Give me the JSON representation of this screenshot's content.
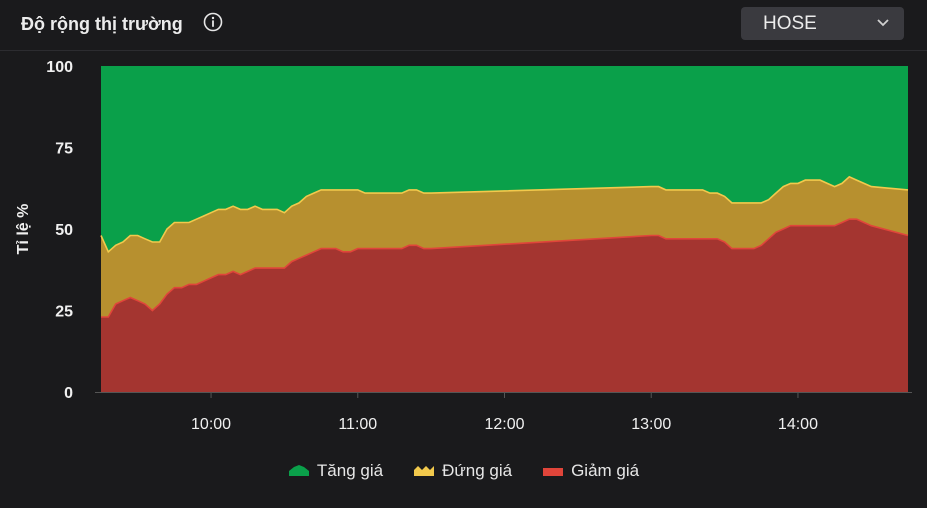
{
  "header": {
    "title": "Độ rộng thị trường",
    "info_icon": "info-circle-icon",
    "exchange_select": {
      "value": "HOSE",
      "icon": "chevron-down-icon"
    }
  },
  "colors": {
    "up": "#0aa04a",
    "flat": "#b7902f",
    "down": "#a43530",
    "flat_line": "#f2c94c",
    "down_line": "#e0453a",
    "axis_text": "#f0f0f0",
    "grid_line": "#555555"
  },
  "legend": [
    {
      "key": "up",
      "label": "Tăng giá"
    },
    {
      "key": "flat",
      "label": "Đứng giá"
    },
    {
      "key": "down",
      "label": "Giảm giá"
    }
  ],
  "chart_data": {
    "type": "area",
    "stacked": true,
    "ylabel": "Tỉ lệ %",
    "ylim": [
      0,
      100
    ],
    "yticks": [
      "0",
      "25",
      "50",
      "75",
      "100"
    ],
    "xlim": [
      "09:15",
      "14:45"
    ],
    "xticks": [
      "10:00",
      "11:00",
      "12:00",
      "13:00",
      "14:00"
    ],
    "x": [
      "09:15",
      "09:18",
      "09:21",
      "09:24",
      "09:27",
      "09:30",
      "09:33",
      "09:36",
      "09:39",
      "09:42",
      "09:45",
      "09:48",
      "09:51",
      "09:54",
      "09:57",
      "10:00",
      "10:03",
      "10:06",
      "10:09",
      "10:12",
      "10:15",
      "10:18",
      "10:21",
      "10:24",
      "10:27",
      "10:30",
      "10:33",
      "10:36",
      "10:39",
      "10:42",
      "10:45",
      "10:48",
      "10:51",
      "10:54",
      "10:57",
      "11:00",
      "11:03",
      "11:06",
      "11:09",
      "11:12",
      "11:15",
      "11:18",
      "11:21",
      "11:24",
      "11:27",
      "11:30",
      "13:00",
      "13:03",
      "13:06",
      "13:09",
      "13:12",
      "13:15",
      "13:18",
      "13:21",
      "13:24",
      "13:27",
      "13:30",
      "13:33",
      "13:36",
      "13:39",
      "13:42",
      "13:45",
      "13:48",
      "13:51",
      "13:54",
      "13:57",
      "14:00",
      "14:03",
      "14:06",
      "14:09",
      "14:12",
      "14:15",
      "14:18",
      "14:21",
      "14:24",
      "14:27",
      "14:30",
      "14:45"
    ],
    "series": [
      {
        "name": "Giảm giá",
        "key": "down",
        "values": [
          23,
          23,
          27,
          28,
          29,
          28,
          27,
          25,
          27,
          30,
          32,
          32,
          33,
          33,
          34,
          35,
          36,
          36,
          37,
          36,
          37,
          38,
          38,
          38,
          38,
          38,
          40,
          41,
          42,
          43,
          44,
          44,
          44,
          43,
          43,
          44,
          44,
          44,
          44,
          44,
          44,
          44,
          45,
          45,
          44,
          44,
          48,
          48,
          47,
          47,
          47,
          47,
          47,
          47,
          47,
          47,
          46,
          44,
          44,
          44,
          44,
          45,
          47,
          49,
          50,
          51,
          51,
          51,
          51,
          51,
          51,
          51,
          52,
          53,
          53,
          52,
          51,
          48
        ]
      },
      {
        "name": "Đứng giá",
        "key": "flat",
        "values": [
          25,
          20,
          18,
          18,
          19,
          20,
          20,
          21,
          19,
          20,
          20,
          20,
          19,
          20,
          20,
          20,
          20,
          20,
          20,
          20,
          19,
          19,
          18,
          18,
          18,
          17,
          17,
          17,
          18,
          18,
          18,
          18,
          18,
          19,
          19,
          18,
          17,
          17,
          17,
          17,
          17,
          17,
          17,
          17,
          17,
          17,
          15,
          15,
          15,
          15,
          15,
          15,
          15,
          15,
          14,
          14,
          14,
          14,
          14,
          14,
          14,
          13,
          12,
          12,
          13,
          13,
          13,
          14,
          14,
          14,
          13,
          12,
          12,
          13,
          12,
          12,
          12,
          14
        ]
      },
      {
        "name": "Tăng giá",
        "key": "up",
        "values": [
          52,
          57,
          55,
          54,
          52,
          52,
          53,
          54,
          54,
          50,
          48,
          48,
          48,
          47,
          46,
          45,
          44,
          44,
          43,
          44,
          44,
          43,
          44,
          44,
          44,
          45,
          43,
          42,
          40,
          39,
          38,
          38,
          38,
          38,
          38,
          38,
          39,
          39,
          39,
          39,
          39,
          39,
          38,
          38,
          39,
          39,
          37,
          37,
          38,
          38,
          38,
          38,
          38,
          38,
          39,
          39,
          40,
          42,
          42,
          42,
          42,
          42,
          41,
          39,
          37,
          36,
          36,
          35,
          35,
          35,
          36,
          37,
          36,
          34,
          35,
          36,
          37,
          38
        ]
      }
    ]
  }
}
